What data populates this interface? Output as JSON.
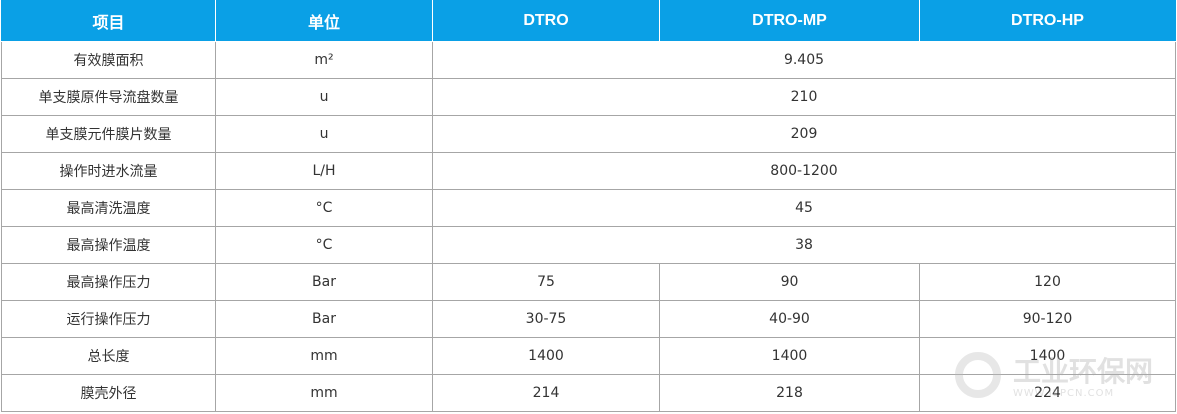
{
  "table": {
    "header": [
      "项目",
      "单位",
      "DTRO",
      "DTRO-MP",
      "DTRO-HP"
    ],
    "rows": [
      [
        "有效膜面积",
        "m²",
        "9.405"
      ],
      [
        "单支膜原件导流盘数量",
        "u",
        "210"
      ],
      [
        "单支膜元件膜片数量",
        "u",
        "209"
      ],
      [
        "操作时进水流量",
        "L/H",
        "800-1200"
      ],
      [
        "最高清洗温度",
        "°C",
        "45"
      ],
      [
        "最高操作温度",
        "°C",
        "38"
      ],
      [
        "最高操作压力",
        "Bar",
        "75",
        "90",
        "120"
      ],
      [
        "运行操作压力",
        "Bar",
        "30-75",
        "40-90",
        "90-120"
      ],
      [
        "总长度",
        "mm",
        "1400",
        "1400",
        "1400"
      ],
      [
        "膜壳外径",
        "mm",
        "214",
        "218",
        "224"
      ]
    ]
  },
  "watermark": {
    "name": "工业环保网",
    "url": "WWW.IEPCN.COM"
  }
}
